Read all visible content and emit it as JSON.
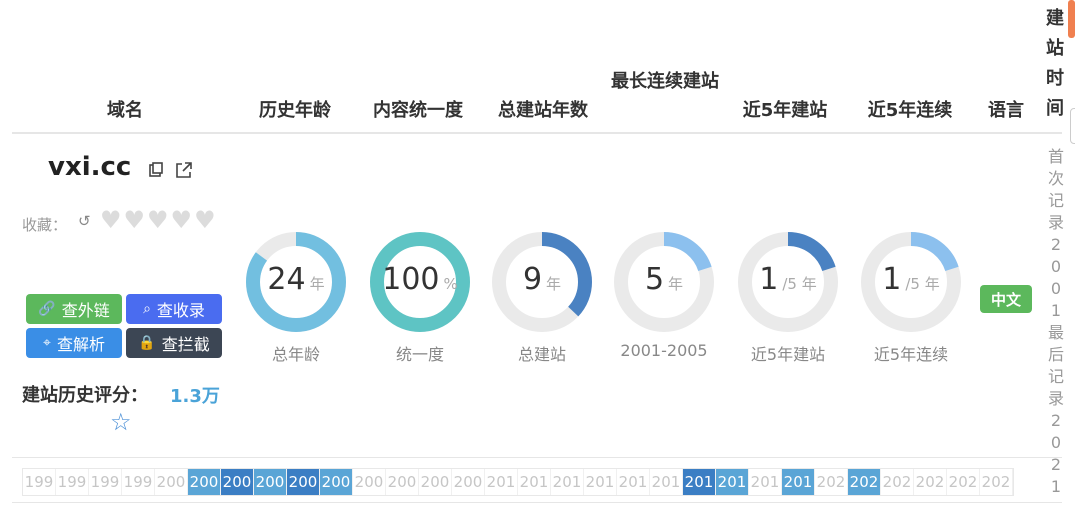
{
  "headers": {
    "domain": "域名",
    "history_age": "历史年龄",
    "content_consistency": "内容统一度",
    "total_years": "总建站年数",
    "longest_run": "最长连续建站",
    "recent5_build": "近5年建站",
    "recent5_consecutive": "近5年连续",
    "language": "语言",
    "build_time": "建站时间"
  },
  "row": {
    "domain": "vxi.cc",
    "favorite_label": "收藏：",
    "buttons": {
      "external_links": "查外链",
      "indexed": "查收录",
      "dns": "查解析",
      "blocked": "查拦截"
    },
    "score_label": "建站历史评分：",
    "score_value": "1.3万",
    "rings": [
      {
        "value": "24",
        "unit": "年",
        "label": "总年龄",
        "fraction": 0.85,
        "color": "#72bfe0"
      },
      {
        "value": "100",
        "unit": "%",
        "label": "统一度",
        "fraction": 1.0,
        "color": "#5ec4c4"
      },
      {
        "value": "9",
        "unit": "年",
        "label": "总建站",
        "fraction": 0.37,
        "color": "#4a82c2"
      },
      {
        "value": "5",
        "unit": "年",
        "label": "2001-2005",
        "fraction": 0.2,
        "color": "#8cc0ee"
      },
      {
        "value": "1",
        "unit": "/5 年",
        "label": "近5年建站",
        "fraction": 0.2,
        "color": "#4a82c2"
      },
      {
        "value": "1",
        "unit": "/5 年",
        "label": "近5年连续",
        "fraction": 0.2,
        "color": "#8cc0ee"
      }
    ],
    "language": "中文",
    "build_time": "首次记录2001最后记录2021"
  },
  "timeline": [
    {
      "label": "199",
      "state": "off"
    },
    {
      "label": "199",
      "state": "off"
    },
    {
      "label": "199",
      "state": "off"
    },
    {
      "label": "199",
      "state": "off"
    },
    {
      "label": "200",
      "state": "off"
    },
    {
      "label": "200",
      "state": "on1"
    },
    {
      "label": "200",
      "state": "on2"
    },
    {
      "label": "200",
      "state": "on1"
    },
    {
      "label": "200",
      "state": "on2"
    },
    {
      "label": "200",
      "state": "on1"
    },
    {
      "label": "200",
      "state": "off"
    },
    {
      "label": "200",
      "state": "off"
    },
    {
      "label": "200",
      "state": "off"
    },
    {
      "label": "200",
      "state": "off"
    },
    {
      "label": "201",
      "state": "off"
    },
    {
      "label": "201",
      "state": "off"
    },
    {
      "label": "201",
      "state": "off"
    },
    {
      "label": "201",
      "state": "off"
    },
    {
      "label": "201",
      "state": "off"
    },
    {
      "label": "201",
      "state": "off"
    },
    {
      "label": "201",
      "state": "on2"
    },
    {
      "label": "201",
      "state": "on1"
    },
    {
      "label": "201",
      "state": "off"
    },
    {
      "label": "201",
      "state": "on1"
    },
    {
      "label": "202",
      "state": "off"
    },
    {
      "label": "202",
      "state": "on1"
    },
    {
      "label": "202",
      "state": "off"
    },
    {
      "label": "202",
      "state": "off"
    },
    {
      "label": "202",
      "state": "off"
    },
    {
      "label": "202",
      "state": "off"
    }
  ],
  "icons": {
    "copy": "copy-icon",
    "external": "external-link-icon",
    "undo": "undo-icon",
    "heart": "heart-icon",
    "star": "star-icon"
  },
  "colors": {
    "btn_green": "#5cb85c",
    "btn_blue": "#4a6cf0",
    "btn_lightblue": "#3a8ee6",
    "btn_dark": "#3c4654",
    "accent": "#4aa3d8"
  }
}
